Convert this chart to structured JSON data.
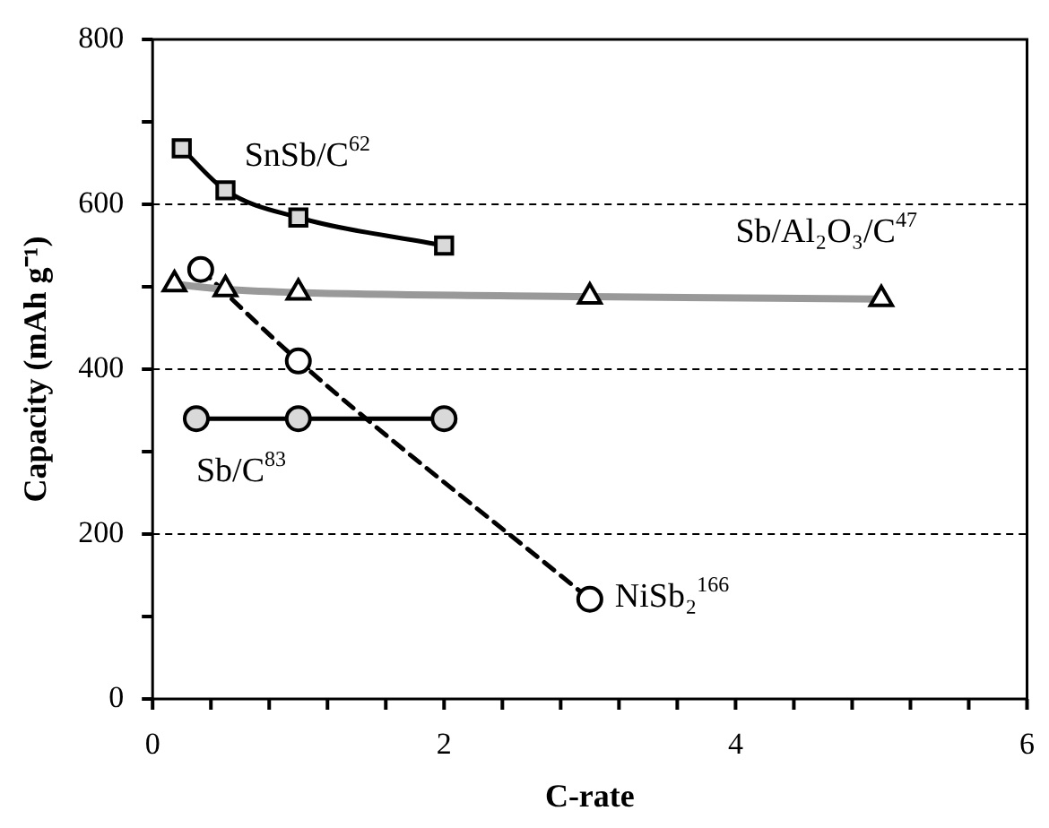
{
  "chart_data": {
    "type": "line",
    "xlabel": "C-rate",
    "ylabel": "Capacity (mAh g⁻¹)",
    "xlim": [
      0,
      6
    ],
    "xticks": [
      0,
      {
        "value": 0.4,
        "label": null
      },
      {
        "value": 0.8,
        "label": null
      },
      {
        "value": 1.2,
        "label": null
      },
      {
        "value": 1.6,
        "label": null
      },
      2,
      {
        "value": 2.4,
        "label": null
      },
      {
        "value": 2.8,
        "label": null
      },
      {
        "value": 3.2,
        "label": null
      },
      {
        "value": 3.6,
        "label": null
      },
      4,
      {
        "value": 4.4,
        "label": null
      },
      {
        "value": 4.8,
        "label": null
      },
      {
        "value": 5.2,
        "label": null
      },
      {
        "value": 5.6,
        "label": null
      },
      6
    ],
    "ylim": [
      0,
      800
    ],
    "yticks": [
      0,
      {
        "value": 100,
        "label": null
      },
      200,
      {
        "value": 300,
        "label": null
      },
      400,
      {
        "value": 500,
        "label": null
      },
      600,
      {
        "value": 700,
        "label": null
      },
      800
    ],
    "grid": "y",
    "series": [
      {
        "name": "SnSb/C$^{62}$",
        "color": "#000000",
        "marker": "square",
        "line_style": "solid",
        "x": [
          0.2,
          0.5,
          1,
          2
        ],
        "values": [
          668,
          617,
          584,
          550
        ]
      },
      {
        "name": "Sb/Al₂O₃/C$^{47}$",
        "color": "#999999",
        "marker": "triangle",
        "line_style": "solid",
        "x": [
          0.15,
          0.5,
          1,
          3,
          5
        ],
        "values": [
          503,
          497,
          493,
          488,
          485
        ]
      },
      {
        "name": "NiSb₂$^{166}$",
        "color": "#000000",
        "marker": "circle",
        "line_style": "dashed",
        "x": [
          0.33,
          1,
          3
        ],
        "values": [
          521,
          410,
          121
        ]
      },
      {
        "name": "Sb/C$^{83}$",
        "color": "#000000",
        "marker": "circle",
        "line_style": "solid",
        "x": [
          0.3,
          1,
          2
        ],
        "values": [
          340,
          340,
          340
        ]
      }
    ]
  }
}
